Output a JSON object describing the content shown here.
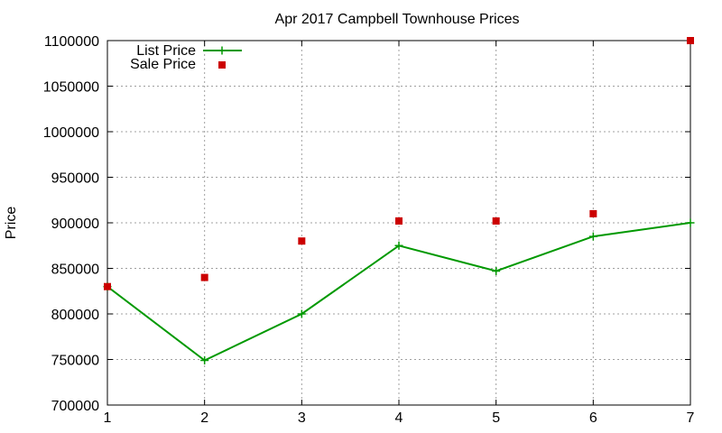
{
  "chart_data": {
    "type": "line",
    "title": "Apr 2017 Campbell Townhouse Prices",
    "xlabel": "",
    "ylabel": "Price",
    "x": [
      1,
      2,
      3,
      4,
      5,
      6,
      7
    ],
    "xlim": [
      1,
      7
    ],
    "ylim": [
      700000,
      1100000
    ],
    "x_ticks": [
      "1",
      "2",
      "3",
      "4",
      "5",
      "6",
      "7"
    ],
    "y_ticks": [
      "700000",
      "750000",
      "800000",
      "850000",
      "900000",
      "950000",
      "1000000",
      "1050000",
      "1100000"
    ],
    "grid": true,
    "legend_position": "top-left",
    "series": [
      {
        "name": "List Price",
        "style": "line+cross",
        "color": "#009900",
        "values": [
          830000,
          749000,
          800000,
          875000,
          847000,
          885000,
          900000
        ]
      },
      {
        "name": "Sale Price",
        "style": "square-markers",
        "color": "#cc0000",
        "values": [
          830000,
          840000,
          880000,
          902000,
          902000,
          910000,
          1100000
        ]
      }
    ]
  }
}
